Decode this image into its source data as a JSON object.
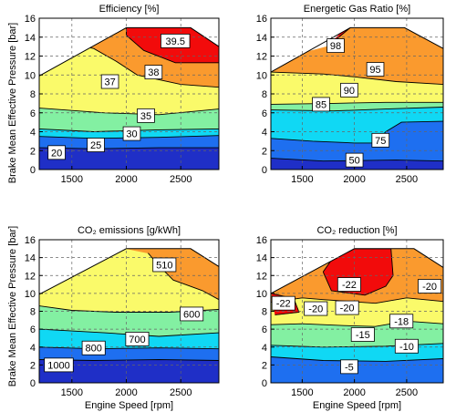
{
  "figure": {
    "shared_ylabel": "Brake Mean Effective Pressure [bar]",
    "shared_xlabel": "Engine Speed [rpm]"
  },
  "colors": {
    "darkblue": "#1f2fc7",
    "blue": "#1e6ff0",
    "cyan": "#10d8f4",
    "green": "#83f0a2",
    "yellow": "#fafa6a",
    "orange": "#fa9a2e",
    "red": "#f20b0b",
    "grid": "#666666"
  },
  "chart_data": [
    {
      "type": "contour",
      "title": "Efficiency [%]",
      "xlabel": "",
      "ylabel": "Brake Mean Effective Pressure [bar]",
      "xlim": [
        1200,
        2850
      ],
      "ylim": [
        0,
        16
      ],
      "xticks": [
        1500,
        2000,
        2500
      ],
      "yticks": [
        0,
        2,
        4,
        6,
        8,
        10,
        12,
        14,
        16
      ],
      "grid": true,
      "show_xticklabels": true,
      "show_yticklabels": true,
      "contour_labels": [
        {
          "text": "20",
          "x": 1360,
          "y": 1.8
        },
        {
          "text": "25",
          "x": 1720,
          "y": 2.6
        },
        {
          "text": "30",
          "x": 2050,
          "y": 3.8
        },
        {
          "text": "35",
          "x": 2180,
          "y": 5.7
        },
        {
          "text": "37",
          "x": 1850,
          "y": 9.3
        },
        {
          "text": "38",
          "x": 2250,
          "y": 10.3
        },
        {
          "text": "39.5",
          "x": 2450,
          "y": 13.6
        }
      ]
    },
    {
      "type": "contour",
      "title": "Energetic Gas Ratio [%]",
      "xlabel": "",
      "ylabel": "",
      "xlim": [
        1200,
        2850
      ],
      "ylim": [
        0,
        16
      ],
      "xticks": [
        1500,
        2000,
        2500
      ],
      "yticks": [
        0,
        2,
        4,
        6,
        8,
        10,
        12,
        14,
        16
      ],
      "grid": true,
      "show_xticklabels": true,
      "show_yticklabels": true,
      "contour_labels": [
        {
          "text": "98",
          "x": 1820,
          "y": 13.1
        },
        {
          "text": "95",
          "x": 2200,
          "y": 10.6
        },
        {
          "text": "90",
          "x": 1950,
          "y": 8.4
        },
        {
          "text": "85",
          "x": 1680,
          "y": 6.9
        },
        {
          "text": "75",
          "x": 2250,
          "y": 3.1
        },
        {
          "text": "50",
          "x": 2000,
          "y": 1.0
        }
      ]
    },
    {
      "type": "contour",
      "title": "CO₂ emissions [g/kWh]",
      "xlabel": "Engine Speed [rpm]",
      "ylabel": "Brake Mean Effective Pressure [bar]",
      "xlim": [
        1200,
        2850
      ],
      "ylim": [
        0,
        16
      ],
      "xticks": [
        1500,
        2000,
        2500
      ],
      "yticks": [
        0,
        2,
        4,
        6,
        8,
        10,
        12,
        14,
        16
      ],
      "grid": true,
      "show_xticklabels": true,
      "show_yticklabels": true,
      "contour_labels": [
        {
          "text": "510",
          "x": 2350,
          "y": 13.2
        },
        {
          "text": "600",
          "x": 2600,
          "y": 7.7
        },
        {
          "text": "700",
          "x": 2100,
          "y": 4.9
        },
        {
          "text": "800",
          "x": 1700,
          "y": 3.9
        },
        {
          "text": "1000",
          "x": 1380,
          "y": 2.0
        }
      ]
    },
    {
      "type": "contour",
      "title": "CO₂ reduction [%]",
      "xlabel": "Engine Speed [rpm]",
      "ylabel": "",
      "xlim": [
        1200,
        2850
      ],
      "ylim": [
        0,
        16
      ],
      "xticks": [
        1500,
        2000,
        2500
      ],
      "yticks": [
        0,
        2,
        4,
        6,
        8,
        10,
        12,
        14,
        16
      ],
      "grid": true,
      "show_xticklabels": true,
      "show_yticklabels": true,
      "contour_labels": [
        {
          "text": "-22",
          "x": 1950,
          "y": 11.0
        },
        {
          "text": "-22",
          "x": 1320,
          "y": 8.9
        },
        {
          "text": "-20",
          "x": 1630,
          "y": 8.3
        },
        {
          "text": "-20",
          "x": 1930,
          "y": 8.4
        },
        {
          "text": "-20",
          "x": 2720,
          "y": 10.8
        },
        {
          "text": "-18",
          "x": 2450,
          "y": 6.9
        },
        {
          "text": "-15",
          "x": 2080,
          "y": 5.4
        },
        {
          "text": "-10",
          "x": 2500,
          "y": 4.1
        },
        {
          "text": "-5",
          "x": 1950,
          "y": 1.8
        }
      ]
    }
  ]
}
